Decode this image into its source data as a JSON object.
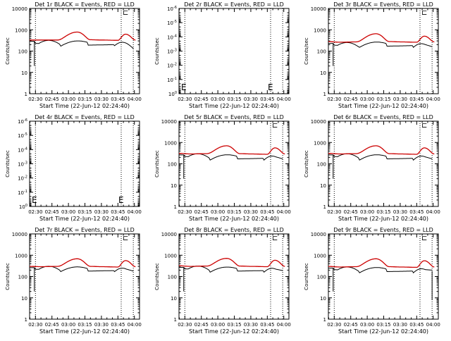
{
  "chart_data": [
    {
      "type": "line",
      "title": "Det 1r BLACK = Events, RED = LLD",
      "xlabel": "Start Time (22-Jun-12 02:24:40)",
      "ylabel": "Counts/sec",
      "yscale": "log",
      "ylim_exp": [
        0,
        4
      ],
      "x_ticks": [
        "02:30",
        "02:45",
        "03:00",
        "03:15",
        "03:30",
        "03:45",
        "04:00"
      ],
      "vlines": [
        "02:30",
        "03:48",
        "03:59"
      ],
      "empty": false,
      "black_dropout": true,
      "black_end_dip": false,
      "marker_glyphs": [
        "⊏"
      ],
      "series": [
        {
          "name": "Events",
          "color": "#000000",
          "x": [
            "02:24",
            "02:29",
            "02:30",
            "02:52",
            "02:53",
            "03:17",
            "03:18",
            "03:41",
            "03:42",
            "03:53",
            "03:59"
          ],
          "y": [
            290,
            290,
            230,
            210,
            170,
            260,
            190,
            200,
            180,
            230,
            130
          ]
        },
        {
          "name": "LLD",
          "color": "#cc0000",
          "x": [
            "02:24",
            "02:35",
            "02:50",
            "03:08",
            "03:20",
            "03:30",
            "03:45",
            "03:52",
            "04:01"
          ],
          "y": [
            330,
            330,
            330,
            780,
            340,
            330,
            320,
            620,
            330
          ]
        }
      ]
    },
    {
      "type": "line",
      "title": "Det 2r BLACK = Events, RED = LLD",
      "xlabel": "Start Time (22-Jun-12 02:24:40)",
      "ylabel": "Counts/sec",
      "yscale": "log",
      "ylim_exp": [
        0,
        -6
      ],
      "x_ticks": [
        "02:30",
        "02:45",
        "03:00",
        "03:15",
        "03:30",
        "03:45",
        "04:00"
      ],
      "vlines": [
        "02:30",
        "03:48",
        "03:59"
      ],
      "empty": true,
      "marker_glyphs": [
        "E",
        "E"
      ],
      "series": []
    },
    {
      "type": "line",
      "title": "Det 3r BLACK = Events, RED = LLD",
      "xlabel": "Start Time (22-Jun-12 02:24:40)",
      "ylabel": "Counts/sec",
      "yscale": "log",
      "ylim_exp": [
        0,
        4
      ],
      "x_ticks": [
        "02:30",
        "02:45",
        "03:00",
        "03:15",
        "03:30",
        "03:45",
        "04:00"
      ],
      "vlines": [
        "02:30",
        "03:48",
        "03:59"
      ],
      "empty": false,
      "black_dropout": true,
      "black_end_dip": false,
      "marker_glyphs": [
        "⊏"
      ],
      "series": [
        {
          "name": "Events",
          "color": "#000000",
          "x": [
            "02:24",
            "02:29",
            "02:30",
            "02:52",
            "02:53",
            "03:17",
            "03:18",
            "03:41",
            "03:42",
            "03:53",
            "03:59"
          ],
          "y": [
            230,
            230,
            190,
            160,
            150,
            230,
            170,
            180,
            150,
            200,
            160
          ]
        },
        {
          "name": "LLD",
          "color": "#cc0000",
          "x": [
            "02:24",
            "02:35",
            "02:50",
            "03:08",
            "03:20",
            "03:30",
            "03:45",
            "03:52",
            "04:01"
          ],
          "y": [
            280,
            260,
            270,
            650,
            280,
            270,
            260,
            500,
            270
          ]
        }
      ]
    },
    {
      "type": "line",
      "title": "Det 4r BLACK = Events, RED = LLD",
      "xlabel": "Start Time (22-Jun-12 02:24:40)",
      "ylabel": "Counts/sec",
      "yscale": "log",
      "ylim_exp": [
        0,
        -6
      ],
      "x_ticks": [
        "02:30",
        "02:45",
        "03:00",
        "03:15",
        "03:30",
        "03:45",
        "04:00"
      ],
      "vlines": [
        "02:30",
        "03:48",
        "03:59"
      ],
      "empty": true,
      "marker_glyphs": [
        "E",
        "E"
      ],
      "series": []
    },
    {
      "type": "line",
      "title": "Det 5r BLACK = Events, RED = LLD",
      "xlabel": "Start Time (22-Jun-12 02:24:40)",
      "ylabel": "Counts/sec",
      "yscale": "log",
      "ylim_exp": [
        0,
        4
      ],
      "x_ticks": [
        "02:30",
        "02:45",
        "03:00",
        "03:15",
        "03:30",
        "03:45",
        "04:00"
      ],
      "vlines": [
        "02:30",
        "03:48",
        "03:59"
      ],
      "empty": false,
      "black_dropout": true,
      "black_end_dip": false,
      "marker_glyphs": [
        "⊏"
      ],
      "series": [
        {
          "name": "Events",
          "color": "#000000",
          "x": [
            "02:24",
            "02:29",
            "02:30",
            "02:52",
            "02:53",
            "03:17",
            "03:18",
            "03:41",
            "03:42",
            "03:53",
            "03:59"
          ],
          "y": [
            260,
            260,
            220,
            190,
            150,
            230,
            170,
            180,
            150,
            210,
            170
          ]
        },
        {
          "name": "LLD",
          "color": "#cc0000",
          "x": [
            "02:24",
            "02:35",
            "02:50",
            "03:08",
            "03:20",
            "03:30",
            "03:45",
            "03:52",
            "04:01"
          ],
          "y": [
            310,
            290,
            300,
            700,
            300,
            290,
            280,
            560,
            290
          ]
        }
      ]
    },
    {
      "type": "line",
      "title": "Det 6r BLACK = Events, RED = LLD",
      "xlabel": "Start Time (22-Jun-12 02:24:40)",
      "ylabel": "Counts/sec",
      "yscale": "log",
      "ylim_exp": [
        0,
        4
      ],
      "x_ticks": [
        "02:30",
        "02:45",
        "03:00",
        "03:15",
        "03:30",
        "03:45",
        "04:00"
      ],
      "vlines": [
        "02:30",
        "03:48",
        "03:59"
      ],
      "empty": false,
      "black_dropout": true,
      "black_end_dip": false,
      "marker_glyphs": [
        "⊏"
      ],
      "series": [
        {
          "name": "Events",
          "color": "#000000",
          "x": [
            "02:24",
            "02:29",
            "02:30",
            "02:52",
            "02:53",
            "03:17",
            "03:18",
            "03:41",
            "03:42",
            "03:53",
            "03:59"
          ],
          "y": [
            260,
            260,
            220,
            190,
            150,
            230,
            170,
            180,
            150,
            210,
            170
          ]
        },
        {
          "name": "LLD",
          "color": "#cc0000",
          "x": [
            "02:24",
            "02:35",
            "02:50",
            "03:08",
            "03:20",
            "03:30",
            "03:45",
            "03:52",
            "04:01"
          ],
          "y": [
            310,
            290,
            300,
            700,
            300,
            290,
            280,
            560,
            290
          ]
        }
      ]
    },
    {
      "type": "line",
      "title": "Det 7r BLACK = Events, RED = LLD",
      "xlabel": "Start Time (22-Jun-12 02:24:40)",
      "ylabel": "Counts/sec",
      "yscale": "log",
      "ylim_exp": [
        0,
        4
      ],
      "x_ticks": [
        "02:30",
        "02:45",
        "03:00",
        "03:15",
        "03:30",
        "03:45",
        "04:00"
      ],
      "vlines": [
        "02:30",
        "03:48",
        "03:59"
      ],
      "empty": false,
      "black_dropout": true,
      "black_end_dip": false,
      "marker_glyphs": [
        "⊏"
      ],
      "series": [
        {
          "name": "Events",
          "color": "#000000",
          "x": [
            "02:24",
            "02:29",
            "02:30",
            "02:52",
            "02:53",
            "03:17",
            "03:18",
            "03:41",
            "03:42",
            "03:53",
            "03:59"
          ],
          "y": [
            260,
            260,
            220,
            200,
            170,
            240,
            180,
            190,
            170,
            220,
            180
          ]
        },
        {
          "name": "LLD",
          "color": "#cc0000",
          "x": [
            "02:24",
            "02:35",
            "02:50",
            "03:08",
            "03:20",
            "03:30",
            "03:45",
            "03:52",
            "04:01"
          ],
          "y": [
            300,
            290,
            300,
            680,
            300,
            290,
            280,
            560,
            290
          ]
        }
      ]
    },
    {
      "type": "line",
      "title": "Det 8r BLACK = Events, RED = LLD",
      "xlabel": "Start Time (22-Jun-12 02:24:40)",
      "ylabel": "Counts/sec",
      "yscale": "log",
      "ylim_exp": [
        0,
        4
      ],
      "x_ticks": [
        "02:30",
        "02:45",
        "03:00",
        "03:15",
        "03:30",
        "03:45",
        "04:00"
      ],
      "vlines": [
        "02:30",
        "03:48",
        "03:59"
      ],
      "empty": false,
      "black_dropout": true,
      "black_end_dip": false,
      "marker_glyphs": [
        "⊏"
      ],
      "series": [
        {
          "name": "Events",
          "color": "#000000",
          "x": [
            "02:24",
            "02:29",
            "02:30",
            "02:52",
            "02:53",
            "03:17",
            "03:18",
            "03:41",
            "03:42",
            "03:53",
            "03:59"
          ],
          "y": [
            270,
            270,
            230,
            200,
            160,
            240,
            180,
            190,
            160,
            220,
            190
          ]
        },
        {
          "name": "LLD",
          "color": "#cc0000",
          "x": [
            "02:24",
            "02:35",
            "02:50",
            "03:08",
            "03:20",
            "03:30",
            "03:45",
            "03:52",
            "04:01"
          ],
          "y": [
            320,
            300,
            310,
            710,
            310,
            300,
            290,
            580,
            300
          ]
        }
      ]
    },
    {
      "type": "line",
      "title": "Det 9r BLACK = Events, RED = LLD",
      "xlabel": "Start Time (22-Jun-12 02:24:40)",
      "ylabel": "Counts/sec",
      "yscale": "log",
      "ylim_exp": [
        0,
        4
      ],
      "x_ticks": [
        "02:30",
        "02:45",
        "03:00",
        "03:15",
        "03:30",
        "03:45",
        "04:00"
      ],
      "vlines": [
        "02:30",
        "03:48",
        "03:59"
      ],
      "empty": false,
      "black_dropout": true,
      "black_end_dip": true,
      "marker_glyphs": [
        "⊏"
      ],
      "series": [
        {
          "name": "Events",
          "color": "#000000",
          "x": [
            "02:24",
            "02:29",
            "02:30",
            "02:52",
            "02:53",
            "03:17",
            "03:18",
            "03:41",
            "03:42",
            "03:53",
            "03:59"
          ],
          "y": [
            250,
            250,
            210,
            180,
            150,
            230,
            170,
            180,
            150,
            210,
            200
          ]
        },
        {
          "name": "LLD",
          "color": "#cc0000",
          "x": [
            "02:24",
            "02:35",
            "02:50",
            "03:08",
            "03:20",
            "03:30",
            "03:45",
            "03:52",
            "04:01"
          ],
          "y": [
            300,
            280,
            290,
            680,
            290,
            280,
            270,
            550,
            280
          ]
        }
      ]
    }
  ]
}
